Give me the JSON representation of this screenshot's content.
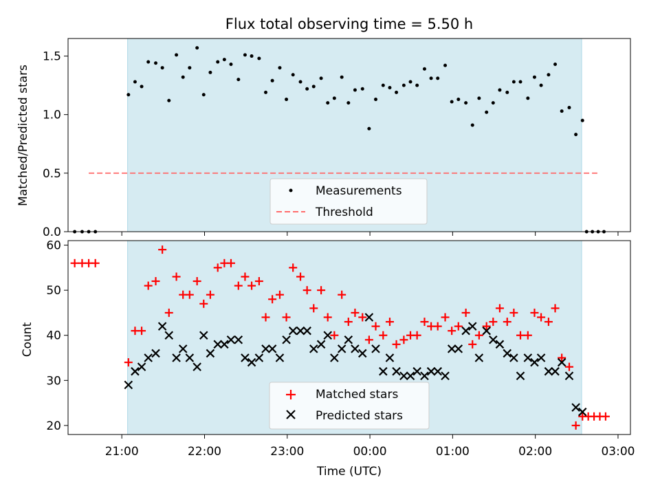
{
  "chart_data": [
    {
      "type": "scatter",
      "title": "Flux total observing time = 5.50 h",
      "xlabel": "",
      "ylabel": "Matched/Predicted stars",
      "xlim": [
        -1.65,
        5.15
      ],
      "ylim": [
        0.0,
        1.65
      ],
      "yticks": [
        0.0,
        0.5,
        1.0,
        1.5
      ],
      "ytick_labels": [
        "0.0",
        "0.5",
        "1.0",
        "1.5"
      ],
      "xticks": [
        -1,
        0,
        1,
        2,
        3,
        4,
        5
      ],
      "shaded_span": [
        -0.93,
        4.56
      ],
      "legend": {
        "placement": "lower center",
        "entries": [
          "Measurements",
          "Threshold"
        ]
      },
      "threshold": {
        "name": "Threshold",
        "value": 0.5,
        "x_range": [
          -1.4,
          4.75
        ],
        "color": "#ff6b6b"
      },
      "series": [
        {
          "name": "Measurements",
          "color": "#000000",
          "points": [
            [
              -1.57,
              0.0
            ],
            [
              -1.48,
              0.0
            ],
            [
              -1.4,
              0.0
            ],
            [
              -1.32,
              0.0
            ],
            [
              -0.92,
              1.17
            ],
            [
              -0.84,
              1.28
            ],
            [
              -0.76,
              1.24
            ],
            [
              -0.68,
              1.45
            ],
            [
              -0.59,
              1.44
            ],
            [
              -0.51,
              1.4
            ],
            [
              -0.43,
              1.12
            ],
            [
              -0.34,
              1.51
            ],
            [
              -0.26,
              1.32
            ],
            [
              -0.18,
              1.4
            ],
            [
              -0.09,
              1.57
            ],
            [
              -0.01,
              1.17
            ],
            [
              0.07,
              1.36
            ],
            [
              0.16,
              1.45
            ],
            [
              0.24,
              1.47
            ],
            [
              0.32,
              1.43
            ],
            [
              0.41,
              1.3
            ],
            [
              0.49,
              1.51
            ],
            [
              0.57,
              1.5
            ],
            [
              0.66,
              1.48
            ],
            [
              0.74,
              1.19
            ],
            [
              0.82,
              1.29
            ],
            [
              0.91,
              1.4
            ],
            [
              0.99,
              1.13
            ],
            [
              1.07,
              1.34
            ],
            [
              1.16,
              1.28
            ],
            [
              1.24,
              1.22
            ],
            [
              1.32,
              1.24
            ],
            [
              1.41,
              1.31
            ],
            [
              1.49,
              1.1
            ],
            [
              1.57,
              1.14
            ],
            [
              1.66,
              1.32
            ],
            [
              1.74,
              1.1
            ],
            [
              1.82,
              1.21
            ],
            [
              1.91,
              1.22
            ],
            [
              1.99,
              0.88
            ],
            [
              2.07,
              1.13
            ],
            [
              2.16,
              1.25
            ],
            [
              2.24,
              1.23
            ],
            [
              2.32,
              1.19
            ],
            [
              2.41,
              1.25
            ],
            [
              2.49,
              1.28
            ],
            [
              2.57,
              1.25
            ],
            [
              2.66,
              1.39
            ],
            [
              2.74,
              1.31
            ],
            [
              2.82,
              1.31
            ],
            [
              2.91,
              1.42
            ],
            [
              2.99,
              1.11
            ],
            [
              3.07,
              1.13
            ],
            [
              3.16,
              1.1
            ],
            [
              3.24,
              0.91
            ],
            [
              3.32,
              1.14
            ],
            [
              3.41,
              1.02
            ],
            [
              3.49,
              1.1
            ],
            [
              3.57,
              1.21
            ],
            [
              3.66,
              1.19
            ],
            [
              3.74,
              1.28
            ],
            [
              3.82,
              1.28
            ],
            [
              3.91,
              1.14
            ],
            [
              3.99,
              1.32
            ],
            [
              4.07,
              1.25
            ],
            [
              4.16,
              1.34
            ],
            [
              4.24,
              1.43
            ],
            [
              4.32,
              1.03
            ],
            [
              4.41,
              1.06
            ],
            [
              4.49,
              0.83
            ],
            [
              4.57,
              0.95
            ],
            [
              4.62,
              0.0
            ],
            [
              4.69,
              0.0
            ],
            [
              4.76,
              0.0
            ],
            [
              4.83,
              0.0
            ]
          ]
        }
      ]
    },
    {
      "type": "scatter",
      "title": "",
      "xlabel": "Time (UTC)",
      "ylabel": "Count",
      "xlim": [
        -1.65,
        5.15
      ],
      "ylim": [
        18,
        61
      ],
      "yticks": [
        20,
        30,
        40,
        50,
        60
      ],
      "ytick_labels": [
        "20",
        "30",
        "40",
        "50",
        "60"
      ],
      "xticks": [
        -1,
        0,
        1,
        2,
        3,
        4,
        5
      ],
      "xtick_labels": [
        "21:00",
        "22:00",
        "23:00",
        "00:00",
        "01:00",
        "02:00",
        "03:00"
      ],
      "shaded_span": [
        -0.93,
        4.56
      ],
      "legend": {
        "placement": "lower center",
        "entries": [
          "Matched stars",
          "Predicted stars"
        ]
      },
      "series": [
        {
          "name": "Matched stars",
          "marker": "plus",
          "color": "#ff0000",
          "points": [
            [
              -1.57,
              56
            ],
            [
              -1.48,
              56
            ],
            [
              -1.4,
              56
            ],
            [
              -1.32,
              56
            ],
            [
              -0.92,
              34
            ],
            [
              -0.84,
              41
            ],
            [
              -0.76,
              41
            ],
            [
              -0.68,
              51
            ],
            [
              -0.59,
              52
            ],
            [
              -0.51,
              59
            ],
            [
              -0.43,
              45
            ],
            [
              -0.34,
              53
            ],
            [
              -0.26,
              49
            ],
            [
              -0.18,
              49
            ],
            [
              -0.09,
              52
            ],
            [
              -0.01,
              47
            ],
            [
              0.07,
              49
            ],
            [
              0.16,
              55
            ],
            [
              0.24,
              56
            ],
            [
              0.32,
              56
            ],
            [
              0.41,
              51
            ],
            [
              0.49,
              53
            ],
            [
              0.57,
              51
            ],
            [
              0.66,
              52
            ],
            [
              0.74,
              44
            ],
            [
              0.82,
              48
            ],
            [
              0.91,
              49
            ],
            [
              0.99,
              44
            ],
            [
              1.07,
              55
            ],
            [
              1.16,
              53
            ],
            [
              1.24,
              50
            ],
            [
              1.32,
              46
            ],
            [
              1.41,
              50
            ],
            [
              1.49,
              44
            ],
            [
              1.57,
              40
            ],
            [
              1.66,
              49
            ],
            [
              1.74,
              43
            ],
            [
              1.82,
              45
            ],
            [
              1.91,
              44
            ],
            [
              1.99,
              39
            ],
            [
              2.07,
              42
            ],
            [
              2.16,
              40
            ],
            [
              2.24,
              43
            ],
            [
              2.32,
              38
            ],
            [
              2.41,
              39
            ],
            [
              2.49,
              40
            ],
            [
              2.57,
              40
            ],
            [
              2.66,
              43
            ],
            [
              2.74,
              42
            ],
            [
              2.82,
              42
            ],
            [
              2.91,
              44
            ],
            [
              2.99,
              41
            ],
            [
              3.07,
              42
            ],
            [
              3.16,
              45
            ],
            [
              3.24,
              38
            ],
            [
              3.32,
              40
            ],
            [
              3.41,
              42
            ],
            [
              3.49,
              43
            ],
            [
              3.57,
              46
            ],
            [
              3.66,
              43
            ],
            [
              3.74,
              45
            ],
            [
              3.82,
              40
            ],
            [
              3.91,
              40
            ],
            [
              3.99,
              45
            ],
            [
              4.07,
              44
            ],
            [
              4.16,
              43
            ],
            [
              4.24,
              46
            ],
            [
              4.32,
              35
            ],
            [
              4.41,
              33
            ],
            [
              4.49,
              20
            ],
            [
              4.57,
              22
            ],
            [
              4.64,
              22
            ],
            [
              4.71,
              22
            ],
            [
              4.78,
              22
            ],
            [
              4.85,
              22
            ]
          ]
        },
        {
          "name": "Predicted stars",
          "marker": "x",
          "color": "#000000",
          "points": [
            [
              -0.92,
              29
            ],
            [
              -0.84,
              32
            ],
            [
              -0.76,
              33
            ],
            [
              -0.68,
              35
            ],
            [
              -0.59,
              36
            ],
            [
              -0.51,
              42
            ],
            [
              -0.43,
              40
            ],
            [
              -0.34,
              35
            ],
            [
              -0.26,
              37
            ],
            [
              -0.18,
              35
            ],
            [
              -0.09,
              33
            ],
            [
              -0.01,
              40
            ],
            [
              0.07,
              36
            ],
            [
              0.16,
              38
            ],
            [
              0.24,
              38
            ],
            [
              0.32,
              39
            ],
            [
              0.41,
              39
            ],
            [
              0.49,
              35
            ],
            [
              0.57,
              34
            ],
            [
              0.66,
              35
            ],
            [
              0.74,
              37
            ],
            [
              0.82,
              37
            ],
            [
              0.91,
              35
            ],
            [
              0.99,
              39
            ],
            [
              1.07,
              41
            ],
            [
              1.16,
              41
            ],
            [
              1.24,
              41
            ],
            [
              1.32,
              37
            ],
            [
              1.41,
              38
            ],
            [
              1.49,
              40
            ],
            [
              1.57,
              35
            ],
            [
              1.66,
              37
            ],
            [
              1.74,
              39
            ],
            [
              1.82,
              37
            ],
            [
              1.91,
              36
            ],
            [
              1.99,
              44
            ],
            [
              2.07,
              37
            ],
            [
              2.16,
              32
            ],
            [
              2.24,
              35
            ],
            [
              2.32,
              32
            ],
            [
              2.41,
              31
            ],
            [
              2.49,
              31
            ],
            [
              2.57,
              32
            ],
            [
              2.66,
              31
            ],
            [
              2.74,
              32
            ],
            [
              2.82,
              32
            ],
            [
              2.91,
              31
            ],
            [
              2.99,
              37
            ],
            [
              3.07,
              37
            ],
            [
              3.16,
              41
            ],
            [
              3.24,
              42
            ],
            [
              3.32,
              35
            ],
            [
              3.41,
              41
            ],
            [
              3.49,
              39
            ],
            [
              3.57,
              38
            ],
            [
              3.66,
              36
            ],
            [
              3.74,
              35
            ],
            [
              3.82,
              31
            ],
            [
              3.91,
              35
            ],
            [
              3.99,
              34
            ],
            [
              4.07,
              35
            ],
            [
              4.16,
              32
            ],
            [
              4.24,
              32
            ],
            [
              4.32,
              34
            ],
            [
              4.41,
              31
            ],
            [
              4.49,
              24
            ],
            [
              4.57,
              23
            ]
          ]
        }
      ]
    }
  ]
}
